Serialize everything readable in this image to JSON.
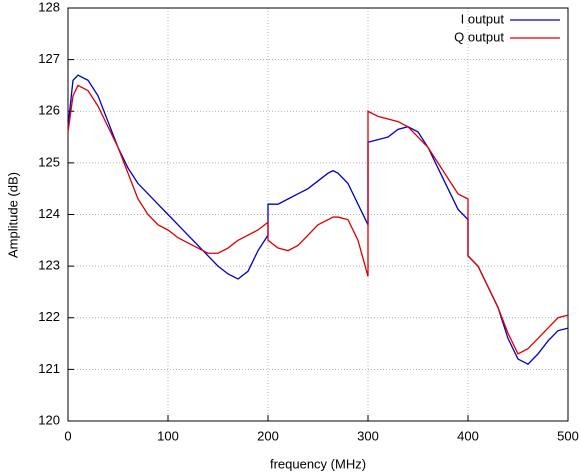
{
  "chart_data": {
    "type": "line",
    "xlabel": "frequency (MHz)",
    "ylabel": "Amplitude (dB)",
    "x": [
      0,
      5,
      10,
      20,
      30,
      40,
      50,
      60,
      70,
      80,
      90,
      100,
      110,
      120,
      130,
      140,
      150,
      160,
      170,
      180,
      190,
      200,
      200,
      210,
      220,
      230,
      240,
      250,
      260,
      265,
      270,
      280,
      290,
      300,
      300,
      310,
      320,
      330,
      340,
      350,
      360,
      370,
      380,
      390,
      400,
      400,
      410,
      420,
      430,
      440,
      450,
      460,
      470,
      480,
      490,
      500
    ],
    "series": [
      {
        "name": "I output",
        "color": "#0000cc",
        "values": [
          125.7,
          126.6,
          126.7,
          126.6,
          126.3,
          125.8,
          125.3,
          124.9,
          124.6,
          124.4,
          124.2,
          124.0,
          123.8,
          123.6,
          123.4,
          123.2,
          123.0,
          122.85,
          122.75,
          122.9,
          123.3,
          123.6,
          124.2,
          124.2,
          124.3,
          124.4,
          124.5,
          124.65,
          124.8,
          124.85,
          124.8,
          124.6,
          124.2,
          123.8,
          125.4,
          125.45,
          125.5,
          125.65,
          125.7,
          125.6,
          125.3,
          124.9,
          124.5,
          124.1,
          123.9,
          123.2,
          123.0,
          122.6,
          122.2,
          121.6,
          121.2,
          121.1,
          121.3,
          121.55,
          121.75,
          121.8
        ]
      },
      {
        "name": "Q output",
        "color": "#dd0000",
        "values": [
          125.6,
          126.3,
          126.5,
          126.4,
          126.1,
          125.7,
          125.3,
          124.8,
          124.3,
          124.0,
          123.8,
          123.7,
          123.55,
          123.45,
          123.35,
          123.25,
          123.25,
          123.35,
          123.5,
          123.6,
          123.7,
          123.85,
          123.5,
          123.35,
          123.3,
          123.4,
          123.6,
          123.8,
          123.9,
          123.95,
          123.95,
          123.9,
          123.5,
          122.8,
          126.0,
          125.9,
          125.85,
          125.8,
          125.7,
          125.5,
          125.3,
          125.0,
          124.7,
          124.4,
          124.3,
          123.2,
          123.0,
          122.6,
          122.2,
          121.7,
          121.3,
          121.4,
          121.6,
          121.8,
          122.0,
          122.05
        ]
      }
    ],
    "xlim": [
      0,
      500
    ],
    "xticks": [
      0,
      100,
      200,
      300,
      400,
      500
    ],
    "ylim": [
      120,
      128
    ],
    "yticks": [
      120,
      121,
      122,
      123,
      124,
      125,
      126,
      127,
      128
    ],
    "grid": true,
    "legend": "top-right"
  }
}
